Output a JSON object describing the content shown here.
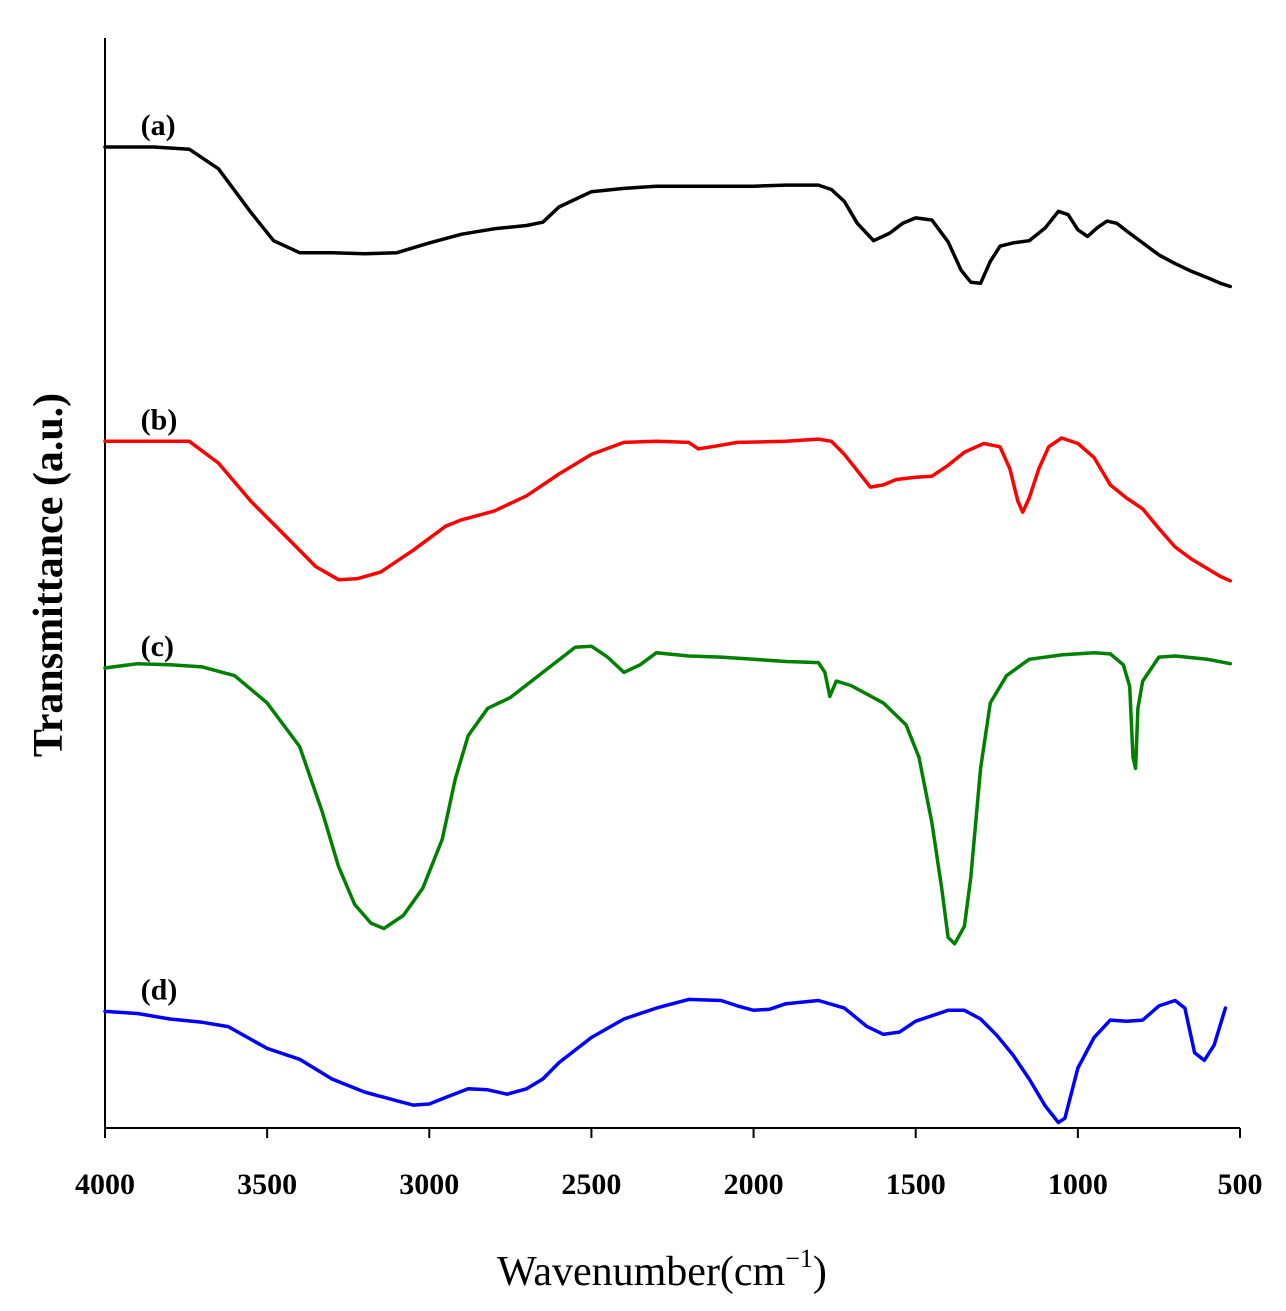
{
  "chart_data": {
    "type": "line",
    "title": "",
    "xlabel": "Wavenumber(cm",
    "xlabel_sup": "−1",
    "xlabel_close": ")",
    "ylabel": "Transmittance (a.u.)",
    "xlim": [
      4000,
      500
    ],
    "ylim": [
      0,
      100
    ],
    "x_ticks": [
      4000,
      3500,
      3000,
      2500,
      2000,
      1500,
      1000,
      500
    ],
    "grid": false,
    "series": [
      {
        "name": "(a)",
        "color": "#000000",
        "points": [
          [
            4000,
            90
          ],
          [
            3850,
            90
          ],
          [
            3740,
            89.8
          ],
          [
            3650,
            88
          ],
          [
            3550,
            84
          ],
          [
            3480,
            81.4
          ],
          [
            3400,
            80.3
          ],
          [
            3300,
            80.3
          ],
          [
            3200,
            80.2
          ],
          [
            3100,
            80.3
          ],
          [
            3000,
            81.2
          ],
          [
            2900,
            82
          ],
          [
            2800,
            82.5
          ],
          [
            2700,
            82.8
          ],
          [
            2650,
            83.1
          ],
          [
            2600,
            84.5
          ],
          [
            2500,
            85.9
          ],
          [
            2400,
            86.2
          ],
          [
            2300,
            86.4
          ],
          [
            2200,
            86.4
          ],
          [
            2100,
            86.4
          ],
          [
            2000,
            86.4
          ],
          [
            1900,
            86.5
          ],
          [
            1800,
            86.5
          ],
          [
            1760,
            86.1
          ],
          [
            1720,
            85
          ],
          [
            1680,
            83
          ],
          [
            1630,
            81.4
          ],
          [
            1580,
            82.1
          ],
          [
            1540,
            83
          ],
          [
            1500,
            83.5
          ],
          [
            1450,
            83.3
          ],
          [
            1400,
            81.3
          ],
          [
            1360,
            78.7
          ],
          [
            1330,
            77.6
          ],
          [
            1300,
            77.5
          ],
          [
            1270,
            79.5
          ],
          [
            1240,
            80.9
          ],
          [
            1200,
            81.2
          ],
          [
            1150,
            81.4
          ],
          [
            1100,
            82.6
          ],
          [
            1060,
            84.1
          ],
          [
            1030,
            83.8
          ],
          [
            1000,
            82.4
          ],
          [
            970,
            81.8
          ],
          [
            940,
            82.6
          ],
          [
            910,
            83.2
          ],
          [
            880,
            83
          ],
          [
            850,
            82.3
          ],
          [
            800,
            81.2
          ],
          [
            750,
            80.1
          ],
          [
            700,
            79.3
          ],
          [
            650,
            78.6
          ],
          [
            600,
            78
          ],
          [
            560,
            77.5
          ],
          [
            530,
            77.2
          ]
        ]
      },
      {
        "name": "(b)",
        "color": "#ff0000",
        "points": [
          [
            4000,
            63
          ],
          [
            3850,
            63
          ],
          [
            3740,
            63
          ],
          [
            3650,
            61
          ],
          [
            3550,
            57.5
          ],
          [
            3450,
            54.5
          ],
          [
            3350,
            51.5
          ],
          [
            3280,
            50.3
          ],
          [
            3220,
            50.4
          ],
          [
            3150,
            51
          ],
          [
            3050,
            53
          ],
          [
            2950,
            55.2
          ],
          [
            2900,
            55.8
          ],
          [
            2800,
            56.6
          ],
          [
            2700,
            58
          ],
          [
            2600,
            60
          ],
          [
            2500,
            61.8
          ],
          [
            2400,
            62.9
          ],
          [
            2300,
            63
          ],
          [
            2200,
            62.9
          ],
          [
            2170,
            62.3
          ],
          [
            2130,
            62.5
          ],
          [
            2050,
            62.9
          ],
          [
            1900,
            63
          ],
          [
            1800,
            63.2
          ],
          [
            1760,
            63
          ],
          [
            1720,
            61.8
          ],
          [
            1680,
            60.3
          ],
          [
            1640,
            58.8
          ],
          [
            1600,
            59
          ],
          [
            1560,
            59.5
          ],
          [
            1500,
            59.7
          ],
          [
            1450,
            59.8
          ],
          [
            1400,
            60.8
          ],
          [
            1350,
            62
          ],
          [
            1290,
            62.8
          ],
          [
            1240,
            62.5
          ],
          [
            1210,
            60.5
          ],
          [
            1185,
            57.5
          ],
          [
            1170,
            56.5
          ],
          [
            1150,
            57.8
          ],
          [
            1120,
            60.5
          ],
          [
            1090,
            62.5
          ],
          [
            1050,
            63.3
          ],
          [
            1000,
            62.8
          ],
          [
            950,
            61.5
          ],
          [
            900,
            59
          ],
          [
            850,
            57.8
          ],
          [
            800,
            56.8
          ],
          [
            750,
            55
          ],
          [
            700,
            53.3
          ],
          [
            650,
            52.2
          ],
          [
            600,
            51.3
          ],
          [
            560,
            50.6
          ],
          [
            530,
            50.2
          ]
        ]
      },
      {
        "name": "(c)",
        "color": "#008000",
        "points": [
          [
            4000,
            42.2
          ],
          [
            3900,
            42.6
          ],
          [
            3800,
            42.5
          ],
          [
            3700,
            42.3
          ],
          [
            3600,
            41.5
          ],
          [
            3500,
            39
          ],
          [
            3400,
            35
          ],
          [
            3330,
            29
          ],
          [
            3280,
            24
          ],
          [
            3230,
            20.5
          ],
          [
            3180,
            18.8
          ],
          [
            3140,
            18.3
          ],
          [
            3080,
            19.5
          ],
          [
            3020,
            22
          ],
          [
            2960,
            26.5
          ],
          [
            2920,
            32
          ],
          [
            2880,
            36
          ],
          [
            2820,
            38.5
          ],
          [
            2750,
            39.5
          ],
          [
            2650,
            41.8
          ],
          [
            2550,
            44.1
          ],
          [
            2500,
            44.2
          ],
          [
            2450,
            43.2
          ],
          [
            2400,
            41.8
          ],
          [
            2350,
            42.5
          ],
          [
            2300,
            43.6
          ],
          [
            2200,
            43.3
          ],
          [
            2100,
            43.2
          ],
          [
            2000,
            43
          ],
          [
            1900,
            42.8
          ],
          [
            1800,
            42.7
          ],
          [
            1780,
            41.8
          ],
          [
            1765,
            39.6
          ],
          [
            1745,
            41
          ],
          [
            1700,
            40.6
          ],
          [
            1600,
            39
          ],
          [
            1530,
            37
          ],
          [
            1490,
            34
          ],
          [
            1450,
            28
          ],
          [
            1420,
            22
          ],
          [
            1400,
            17.5
          ],
          [
            1380,
            16.9
          ],
          [
            1350,
            18.5
          ],
          [
            1330,
            23
          ],
          [
            1300,
            33
          ],
          [
            1270,
            39
          ],
          [
            1220,
            41.5
          ],
          [
            1150,
            43
          ],
          [
            1050,
            43.4
          ],
          [
            950,
            43.6
          ],
          [
            900,
            43.5
          ],
          [
            860,
            42.5
          ],
          [
            840,
            40.5
          ],
          [
            830,
            34
          ],
          [
            822,
            33
          ],
          [
            815,
            38.5
          ],
          [
            800,
            41
          ],
          [
            750,
            43.2
          ],
          [
            700,
            43.3
          ],
          [
            600,
            43
          ],
          [
            530,
            42.6
          ]
        ]
      },
      {
        "name": "(d)",
        "color": "#0000ff",
        "points": [
          [
            4000,
            10.7
          ],
          [
            3900,
            10.5
          ],
          [
            3800,
            10
          ],
          [
            3700,
            9.7
          ],
          [
            3620,
            9.3
          ],
          [
            3500,
            7.3
          ],
          [
            3400,
            6.3
          ],
          [
            3300,
            4.5
          ],
          [
            3200,
            3.3
          ],
          [
            3100,
            2.5
          ],
          [
            3050,
            2.1
          ],
          [
            3000,
            2.2
          ],
          [
            2950,
            2.8
          ],
          [
            2880,
            3.6
          ],
          [
            2820,
            3.5
          ],
          [
            2760,
            3.1
          ],
          [
            2700,
            3.6
          ],
          [
            2650,
            4.5
          ],
          [
            2600,
            6
          ],
          [
            2500,
            8.3
          ],
          [
            2400,
            10
          ],
          [
            2300,
            11
          ],
          [
            2200,
            11.8
          ],
          [
            2100,
            11.7
          ],
          [
            2050,
            11.2
          ],
          [
            2000,
            10.8
          ],
          [
            1950,
            10.9
          ],
          [
            1900,
            11.4
          ],
          [
            1800,
            11.7
          ],
          [
            1720,
            11
          ],
          [
            1650,
            9.3
          ],
          [
            1600,
            8.6
          ],
          [
            1550,
            8.8
          ],
          [
            1500,
            9.8
          ],
          [
            1400,
            10.8
          ],
          [
            1350,
            10.8
          ],
          [
            1300,
            10
          ],
          [
            1250,
            8.5
          ],
          [
            1200,
            6.7
          ],
          [
            1150,
            4.5
          ],
          [
            1100,
            2
          ],
          [
            1060,
            0.5
          ],
          [
            1040,
            0.9
          ],
          [
            1000,
            5.5
          ],
          [
            950,
            8.3
          ],
          [
            900,
            9.9
          ],
          [
            850,
            9.8
          ],
          [
            800,
            9.9
          ],
          [
            750,
            11.2
          ],
          [
            700,
            11.7
          ],
          [
            670,
            11
          ],
          [
            640,
            6.9
          ],
          [
            610,
            6.2
          ],
          [
            580,
            7.6
          ],
          [
            545,
            11
          ]
        ]
      }
    ]
  }
}
